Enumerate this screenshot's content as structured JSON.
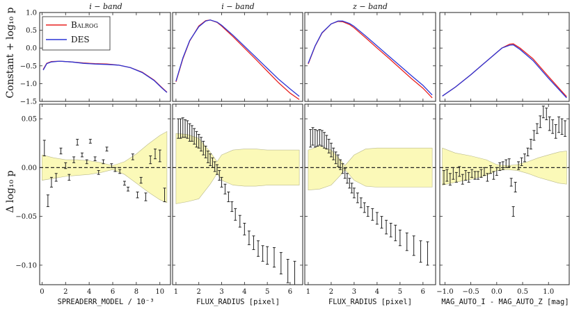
{
  "figure": {
    "top_ylabel": "Constant + log₁₀ p",
    "bottom_ylabel": "Δ log₁₀ p",
    "legend": [
      {
        "label": "Balrog",
        "color": "#e8211f"
      },
      {
        "label": "DES",
        "color": "#2b35d6"
      }
    ]
  },
  "chart_data": [
    {
      "type": "line",
      "title": "i − band",
      "xlabel": "SPREADERR_MODEL / 10⁻³",
      "xlim": [
        -0.2,
        10.9
      ],
      "xticks": [
        0,
        2,
        4,
        6,
        8,
        10
      ],
      "top": {
        "ylim": [
          -1.5,
          1.0
        ],
        "yticks": [
          -1.5,
          -1.0,
          -0.5,
          0.0,
          0.5,
          1.0
        ],
        "series": [
          {
            "name": "Balrog",
            "color": "#e8211f",
            "x": [
              0.1,
              0.4,
              0.8,
              1.5,
              2.5,
              3.5,
              4.5,
              5.5,
              6.5,
              7.5,
              8.5,
              9.5,
              10.2,
              10.6
            ],
            "y": [
              -0.6,
              -0.43,
              -0.38,
              -0.37,
              -0.39,
              -0.42,
              -0.44,
              -0.45,
              -0.48,
              -0.55,
              -0.68,
              -0.9,
              -1.12,
              -1.24
            ]
          },
          {
            "name": "DES",
            "color": "#2b35d6",
            "x": [
              0.1,
              0.4,
              0.8,
              1.5,
              2.5,
              3.5,
              4.5,
              5.5,
              6.5,
              7.5,
              8.5,
              9.5,
              10.2,
              10.6
            ],
            "y": [
              -0.62,
              -0.44,
              -0.39,
              -0.37,
              -0.39,
              -0.43,
              -0.45,
              -0.46,
              -0.48,
              -0.55,
              -0.69,
              -0.91,
              -1.13,
              -1.25
            ]
          }
        ]
      },
      "bottom": {
        "ylim": [
          -0.12,
          0.065
        ],
        "yticks": [
          -0.1,
          -0.05,
          0.0,
          0.05
        ],
        "band_x": [
          0.0,
          1.0,
          2.0,
          3.0,
          4.0,
          5.0,
          6.0,
          7.0,
          8.0,
          9.0,
          10.0,
          10.6
        ],
        "band_upper": [
          0.013,
          0.01,
          0.008,
          0.008,
          0.007,
          0.005,
          0.002,
          0.006,
          0.014,
          0.024,
          0.033,
          0.037
        ],
        "band_lower": [
          -0.013,
          -0.011,
          -0.009,
          -0.008,
          -0.007,
          -0.005,
          -0.002,
          -0.007,
          -0.016,
          -0.025,
          -0.033,
          -0.036
        ],
        "points": {
          "x": [
            0.2,
            0.5,
            0.8,
            1.2,
            1.6,
            2.0,
            2.3,
            2.7,
            3.0,
            3.4,
            3.8,
            4.1,
            4.5,
            4.8,
            5.2,
            5.5,
            5.9,
            6.2,
            6.6,
            7.0,
            7.3,
            7.7,
            8.1,
            8.4,
            8.8,
            9.2,
            9.6,
            10.0,
            10.4
          ],
          "y": [
            0.02,
            -0.034,
            -0.015,
            -0.01,
            0.017,
            0.002,
            -0.01,
            0.008,
            0.026,
            0.013,
            0.006,
            0.027,
            0.009,
            -0.005,
            0.006,
            0.019,
            0.002,
            -0.002,
            -0.004,
            -0.016,
            -0.022,
            0.011,
            -0.028,
            -0.013,
            -0.03,
            0.008,
            0.014,
            0.012,
            -0.028
          ],
          "err": [
            0.008,
            0.006,
            0.005,
            0.004,
            0.003,
            0.003,
            0.003,
            0.003,
            0.003,
            0.002,
            0.002,
            0.002,
            0.002,
            0.002,
            0.002,
            0.002,
            0.002,
            0.002,
            0.002,
            0.002,
            0.002,
            0.003,
            0.003,
            0.003,
            0.004,
            0.004,
            0.005,
            0.006,
            0.007
          ]
        }
      }
    },
    {
      "type": "line",
      "title": "i − band",
      "xlabel": "FLUX_RADIUS [pixel]",
      "xlim": [
        0.85,
        6.55
      ],
      "xticks": [
        1,
        2,
        3,
        4,
        5,
        6
      ],
      "top": {
        "ylim": [
          -1.5,
          1.0
        ],
        "yticks": [
          -1.5,
          -1.0,
          -0.5,
          0.0,
          0.5,
          1.0
        ],
        "series": [
          {
            "name": "Balrog",
            "color": "#e8211f",
            "x": [
              1.0,
              1.3,
              1.6,
              2.0,
              2.3,
              2.5,
              2.8,
              3.0,
              3.5,
              4.0,
              4.5,
              5.0,
              5.5,
              6.0,
              6.4
            ],
            "y": [
              -0.95,
              -0.3,
              0.2,
              0.62,
              0.77,
              0.79,
              0.72,
              0.62,
              0.32,
              0.0,
              -0.32,
              -0.65,
              -0.98,
              -1.27,
              -1.45
            ]
          },
          {
            "name": "DES",
            "color": "#2b35d6",
            "x": [
              1.0,
              1.3,
              1.6,
              2.0,
              2.3,
              2.5,
              2.8,
              3.0,
              3.5,
              4.0,
              4.5,
              5.0,
              5.5,
              6.0,
              6.4
            ],
            "y": [
              -0.93,
              -0.28,
              0.21,
              0.6,
              0.76,
              0.79,
              0.73,
              0.64,
              0.36,
              0.05,
              -0.26,
              -0.57,
              -0.88,
              -1.15,
              -1.36
            ]
          }
        ]
      },
      "bottom": {
        "ylim": [
          -0.12,
          0.065
        ],
        "yticks": [
          -0.1,
          -0.05,
          0.0,
          0.05
        ],
        "band_x": [
          1.0,
          1.5,
          2.0,
          2.5,
          2.8,
          3.0,
          3.5,
          4.0,
          4.5,
          5.0,
          5.5,
          6.0,
          6.4
        ],
        "band_upper": [
          0.035,
          0.034,
          0.03,
          0.016,
          0.006,
          0.013,
          0.018,
          0.019,
          0.019,
          0.018,
          0.018,
          0.018,
          0.018
        ],
        "band_lower": [
          -0.037,
          -0.035,
          -0.032,
          -0.017,
          -0.006,
          -0.013,
          -0.018,
          -0.019,
          -0.019,
          -0.018,
          -0.018,
          -0.018,
          -0.018
        ],
        "points": {
          "x": [
            1.1,
            1.2,
            1.3,
            1.4,
            1.5,
            1.6,
            1.7,
            1.8,
            1.9,
            2.0,
            2.1,
            2.2,
            2.3,
            2.4,
            2.5,
            2.6,
            2.7,
            2.8,
            2.9,
            3.0,
            3.15,
            3.3,
            3.45,
            3.6,
            3.8,
            4.0,
            4.2,
            4.4,
            4.6,
            4.8,
            5.0,
            5.3,
            5.6,
            5.9,
            6.2
          ],
          "y": [
            0.04,
            0.04,
            0.041,
            0.04,
            0.039,
            0.036,
            0.035,
            0.032,
            0.029,
            0.027,
            0.024,
            0.02,
            0.016,
            0.011,
            0.008,
            0.005,
            0.001,
            -0.002,
            -0.008,
            -0.015,
            -0.022,
            -0.03,
            -0.04,
            -0.048,
            -0.055,
            -0.063,
            -0.072,
            -0.077,
            -0.083,
            -0.088,
            -0.09,
            -0.092,
            -0.098,
            -0.106,
            -0.109
          ],
          "err": [
            0.01,
            0.01,
            0.01,
            0.009,
            0.009,
            0.009,
            0.008,
            0.008,
            0.008,
            0.007,
            0.007,
            0.007,
            0.006,
            0.006,
            0.006,
            0.005,
            0.005,
            0.005,
            0.005,
            0.005,
            0.005,
            0.005,
            0.005,
            0.006,
            0.006,
            0.006,
            0.007,
            0.007,
            0.008,
            0.008,
            0.009,
            0.01,
            0.011,
            0.012,
            0.013
          ]
        }
      }
    },
    {
      "type": "line",
      "title": "z − band",
      "xlabel": "FLUX_RADIUS [pixel]",
      "xlim": [
        0.85,
        6.55
      ],
      "xticks": [
        1,
        2,
        3,
        4,
        5,
        6
      ],
      "top": {
        "ylim": [
          -1.5,
          1.0
        ],
        "yticks": [
          -1.5,
          -1.0,
          -0.5,
          0.0,
          0.5,
          1.0
        ],
        "series": [
          {
            "name": "Balrog",
            "color": "#e8211f",
            "x": [
              1.0,
              1.3,
              1.6,
              2.0,
              2.3,
              2.5,
              2.8,
              3.0,
              3.5,
              4.0,
              4.5,
              5.0,
              5.5,
              6.0,
              6.4
            ],
            "y": [
              -0.45,
              0.05,
              0.42,
              0.68,
              0.75,
              0.74,
              0.66,
              0.57,
              0.29,
              0.0,
              -0.28,
              -0.57,
              -0.86,
              -1.13,
              -1.4
            ]
          },
          {
            "name": "DES",
            "color": "#2b35d6",
            "x": [
              1.0,
              1.3,
              1.6,
              2.0,
              2.3,
              2.5,
              2.8,
              3.0,
              3.5,
              4.0,
              4.5,
              5.0,
              5.5,
              6.0,
              6.4
            ],
            "y": [
              -0.43,
              0.06,
              0.43,
              0.68,
              0.76,
              0.76,
              0.69,
              0.61,
              0.34,
              0.06,
              -0.22,
              -0.5,
              -0.78,
              -1.05,
              -1.32
            ]
          }
        ]
      },
      "bottom": {
        "ylim": [
          -0.12,
          0.065
        ],
        "yticks": [
          -0.1,
          -0.05,
          0.0,
          0.05
        ],
        "band_x": [
          1.0,
          1.5,
          2.0,
          2.4,
          2.6,
          3.0,
          3.5,
          4.0,
          4.5,
          5.0,
          5.5,
          6.0,
          6.4
        ],
        "band_upper": [
          0.018,
          0.022,
          0.018,
          0.008,
          0.002,
          0.013,
          0.019,
          0.02,
          0.02,
          0.02,
          0.02,
          0.02,
          0.02
        ],
        "band_lower": [
          -0.023,
          -0.022,
          -0.018,
          -0.008,
          -0.002,
          -0.013,
          -0.019,
          -0.02,
          -0.02,
          -0.02,
          -0.02,
          -0.02,
          -0.02
        ],
        "points": {
          "x": [
            1.1,
            1.2,
            1.3,
            1.4,
            1.5,
            1.6,
            1.7,
            1.8,
            1.9,
            2.0,
            2.1,
            2.2,
            2.3,
            2.4,
            2.5,
            2.6,
            2.7,
            2.8,
            2.9,
            3.0,
            3.15,
            3.3,
            3.45,
            3.6,
            3.8,
            4.0,
            4.2,
            4.4,
            4.6,
            4.8,
            5.0,
            5.3,
            5.6,
            5.9,
            6.2
          ],
          "y": [
            0.03,
            0.032,
            0.03,
            0.03,
            0.031,
            0.03,
            0.028,
            0.026,
            0.022,
            0.018,
            0.014,
            0.01,
            0.007,
            0.003,
            -0.001,
            -0.006,
            -0.011,
            -0.016,
            -0.021,
            -0.026,
            -0.031,
            -0.036,
            -0.041,
            -0.045,
            -0.048,
            -0.052,
            -0.056,
            -0.061,
            -0.064,
            -0.067,
            -0.072,
            -0.076,
            -0.08,
            -0.086,
            -0.088
          ],
          "err": [
            0.009,
            0.009,
            0.009,
            0.008,
            0.008,
            0.008,
            0.008,
            0.007,
            0.007,
            0.007,
            0.006,
            0.006,
            0.006,
            0.005,
            0.005,
            0.005,
            0.005,
            0.005,
            0.005,
            0.005,
            0.005,
            0.005,
            0.005,
            0.005,
            0.006,
            0.006,
            0.006,
            0.007,
            0.007,
            0.008,
            0.008,
            0.009,
            0.01,
            0.011,
            0.012
          ]
        }
      }
    },
    {
      "type": "line",
      "title": "",
      "xlabel": "MAG_AUTO_I - MAG_AUTO_Z [mag]",
      "xlim": [
        -1.1,
        1.4
      ],
      "xticks": [
        -1.0,
        -0.5,
        0.0,
        0.5,
        1.0
      ],
      "top": {
        "ylim": [
          -1.5,
          1.0
        ],
        "yticks": [
          -1.5,
          -1.0,
          -0.5,
          0.0,
          0.5,
          1.0
        ],
        "series": [
          {
            "name": "Balrog",
            "color": "#e8211f",
            "x": [
              -1.05,
              -0.8,
              -0.5,
              -0.3,
              -0.1,
              0.1,
              0.25,
              0.32,
              0.45,
              0.7,
              1.0,
              1.35
            ],
            "y": [
              -1.35,
              -1.1,
              -0.75,
              -0.5,
              -0.25,
              0.0,
              0.11,
              0.12,
              0.0,
              -0.3,
              -0.8,
              -1.37
            ]
          },
          {
            "name": "DES",
            "color": "#2b35d6",
            "x": [
              -1.05,
              -0.8,
              -0.5,
              -0.3,
              -0.1,
              0.1,
              0.25,
              0.32,
              0.45,
              0.7,
              1.0,
              1.35
            ],
            "y": [
              -1.35,
              -1.1,
              -0.75,
              -0.5,
              -0.25,
              0.0,
              0.08,
              0.09,
              -0.04,
              -0.35,
              -0.85,
              -1.4
            ]
          }
        ]
      },
      "bottom": {
        "ylim": [
          -0.12,
          0.065
        ],
        "yticks": [
          -0.1,
          -0.05,
          0.0,
          0.05
        ],
        "band_x": [
          -1.05,
          -0.8,
          -0.5,
          -0.2,
          0.0,
          0.2,
          0.4,
          0.6,
          0.8,
          1.0,
          1.2,
          1.35
        ],
        "band_upper": [
          0.02,
          0.015,
          0.012,
          0.008,
          0.003,
          0.002,
          0.003,
          0.006,
          0.01,
          0.013,
          0.016,
          0.017
        ],
        "band_lower": [
          -0.018,
          -0.015,
          -0.012,
          -0.008,
          -0.003,
          -0.002,
          -0.003,
          -0.006,
          -0.01,
          -0.013,
          -0.016,
          -0.017
        ],
        "points": {
          "x": [
            -1.02,
            -0.96,
            -0.9,
            -0.84,
            -0.78,
            -0.72,
            -0.66,
            -0.6,
            -0.54,
            -0.48,
            -0.42,
            -0.36,
            -0.3,
            -0.24,
            -0.18,
            -0.12,
            -0.06,
            0.0,
            0.06,
            0.12,
            0.18,
            0.24,
            0.28,
            0.32,
            0.36,
            0.42,
            0.48,
            0.54,
            0.6,
            0.66,
            0.72,
            0.78,
            0.84,
            0.9,
            0.96,
            1.02,
            1.08,
            1.14,
            1.2,
            1.26,
            1.32
          ],
          "y": [
            -0.01,
            -0.008,
            -0.012,
            -0.006,
            -0.01,
            -0.004,
            -0.012,
            -0.008,
            -0.01,
            -0.006,
            -0.008,
            -0.008,
            -0.006,
            -0.004,
            -0.01,
            -0.002,
            -0.008,
            -0.004,
            0.001,
            0.002,
            0.004,
            0.005,
            -0.015,
            -0.045,
            -0.02,
            0.002,
            0.006,
            0.01,
            0.016,
            0.024,
            0.033,
            0.04,
            0.047,
            0.057,
            0.055,
            0.045,
            0.042,
            0.037,
            0.044,
            0.042,
            0.04
          ],
          "err": [
            0.007,
            0.006,
            0.006,
            0.006,
            0.005,
            0.005,
            0.005,
            0.005,
            0.005,
            0.004,
            0.004,
            0.004,
            0.004,
            0.004,
            0.004,
            0.004,
            0.004,
            0.004,
            0.004,
            0.004,
            0.004,
            0.004,
            0.004,
            0.005,
            0.005,
            0.004,
            0.004,
            0.004,
            0.004,
            0.005,
            0.005,
            0.005,
            0.006,
            0.006,
            0.006,
            0.007,
            0.007,
            0.007,
            0.008,
            0.008,
            0.008
          ]
        }
      }
    }
  ]
}
